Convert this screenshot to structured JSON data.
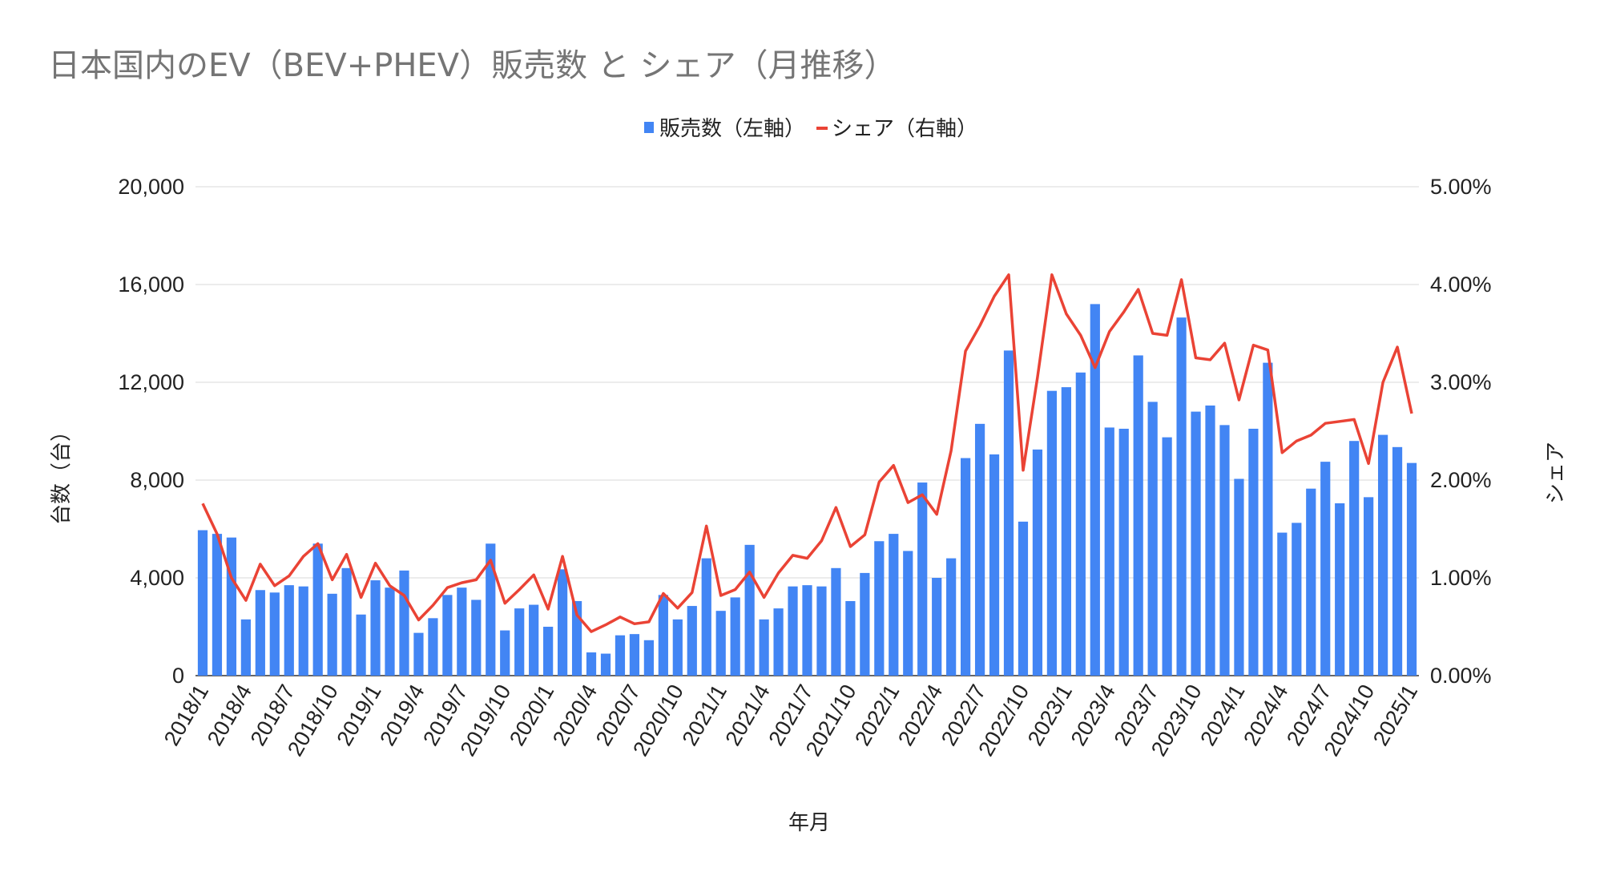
{
  "chart_data": {
    "type": "bar+line",
    "title": "日本国内のEV（BEV+PHEV）販売数 と シェア（月推移）",
    "xlabel": "年月",
    "ylabel": "台数（台）",
    "y2label": "シェア",
    "ylim": [
      0,
      20000
    ],
    "y2lim": [
      0,
      5.0
    ],
    "yticks": [
      "0",
      "4,000",
      "8,000",
      "12,000",
      "16,000",
      "20,000"
    ],
    "y2ticks": [
      "0.00%",
      "1.00%",
      "2.00%",
      "3.00%",
      "4.00%",
      "5.00%"
    ],
    "grid": true,
    "legend_position": "top",
    "colors": {
      "bar": "#4285F4",
      "line": "#EA4335"
    },
    "categories": [
      "2018/1",
      "2018/2",
      "2018/3",
      "2018/4",
      "2018/5",
      "2018/6",
      "2018/7",
      "2018/8",
      "2018/9",
      "2018/10",
      "2018/11",
      "2018/12",
      "2019/1",
      "2019/2",
      "2019/3",
      "2019/4",
      "2019/5",
      "2019/6",
      "2019/7",
      "2019/8",
      "2019/9",
      "2019/10",
      "2019/11",
      "2019/12",
      "2020/1",
      "2020/2",
      "2020/3",
      "2020/4",
      "2020/5",
      "2020/6",
      "2020/7",
      "2020/8",
      "2020/9",
      "2020/10",
      "2020/11",
      "2020/12",
      "2021/1",
      "2021/2",
      "2021/3",
      "2021/4",
      "2021/5",
      "2021/6",
      "2021/7",
      "2021/8",
      "2021/9",
      "2021/10",
      "2021/11",
      "2021/12",
      "2022/1",
      "2022/2",
      "2022/3",
      "2022/4",
      "2022/5",
      "2022/6",
      "2022/7",
      "2022/8",
      "2022/9",
      "2022/10",
      "2022/11",
      "2022/12",
      "2023/1",
      "2023/2",
      "2023/3",
      "2023/4",
      "2023/5",
      "2023/6",
      "2023/7",
      "2023/8",
      "2023/9",
      "2023/10",
      "2023/11",
      "2023/12",
      "2024/1",
      "2024/2",
      "2024/3",
      "2024/4",
      "2024/5",
      "2024/6",
      "2024/7",
      "2024/8",
      "2024/9",
      "2024/10",
      "2024/11",
      "2024/12",
      "2025/1"
    ],
    "series": [
      {
        "name": "販売数（左軸）",
        "type": "bar",
        "axis": "left",
        "values": [
          5950,
          5800,
          5650,
          2300,
          3500,
          3400,
          3700,
          3650,
          5400,
          3350,
          4400,
          2500,
          3900,
          3600,
          4300,
          1750,
          2350,
          3300,
          3600,
          3100,
          5400,
          1850,
          2750,
          2900,
          2000,
          4350,
          3050,
          950,
          900,
          1650,
          1700,
          1450,
          3300,
          2300,
          2850,
          4800,
          2650,
          3200,
          5350,
          2300,
          2750,
          3650,
          3700,
          3650,
          4400,
          3050,
          4200,
          5500,
          5800,
          5100,
          7900,
          4000,
          4800,
          8900,
          10300,
          9050,
          13300,
          6300,
          9250,
          11650,
          11800,
          12400,
          15200,
          10150,
          10100,
          13100,
          11200,
          9750,
          14650,
          10800,
          11050,
          10250,
          8050,
          10100,
          12800,
          5850,
          6250,
          7650,
          8750,
          7050,
          9600,
          7300,
          9850,
          9350,
          8700
        ]
      },
      {
        "name": "シェア（右軸）",
        "type": "line",
        "axis": "right",
        "unit": "%",
        "values": [
          1.76,
          1.45,
          1.0,
          0.77,
          1.14,
          0.92,
          1.02,
          1.22,
          1.35,
          0.98,
          1.24,
          0.8,
          1.15,
          0.92,
          0.82,
          0.57,
          0.72,
          0.9,
          0.95,
          0.98,
          1.18,
          0.74,
          0.88,
          1.03,
          0.68,
          1.22,
          0.62,
          0.45,
          0.52,
          0.6,
          0.53,
          0.55,
          0.84,
          0.69,
          0.85,
          1.53,
          0.82,
          0.88,
          1.06,
          0.8,
          1.05,
          1.23,
          1.2,
          1.38,
          1.72,
          1.32,
          1.44,
          1.98,
          2.15,
          1.77,
          1.85,
          1.65,
          2.3,
          3.32,
          3.58,
          3.88,
          4.1,
          2.1,
          3.05,
          4.1,
          3.7,
          3.48,
          3.15,
          3.52,
          3.72,
          3.95,
          3.5,
          3.48,
          4.05,
          3.25,
          3.23,
          3.4,
          2.82,
          3.38,
          3.33,
          2.28,
          2.4,
          2.46,
          2.58,
          2.6,
          2.62,
          2.17,
          3.0,
          3.36,
          2.68
        ]
      }
    ]
  }
}
